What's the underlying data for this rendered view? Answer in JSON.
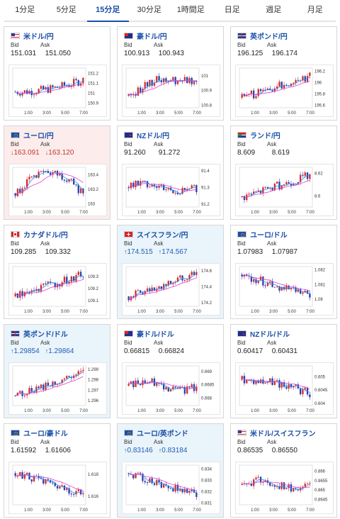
{
  "tabs": [
    "1分足",
    "5分足",
    "15分足",
    "30分足",
    "1時間足",
    "日足",
    "週足",
    "月足"
  ],
  "active_tab": 2,
  "labels": {
    "bid": "Bid",
    "ask": "Ask"
  },
  "colors": {
    "accent": "#1a4fa8",
    "up_bar": "#d62b2b",
    "down_bar": "#2c3fa8",
    "ma_blue": "#1e90ff",
    "ma_pink": "#e040c8",
    "up_bg": "#eaf4fb",
    "down_bg": "#fdecec"
  },
  "x_ticks": [
    "1:00",
    "3:00",
    "5:00",
    "7:00"
  ],
  "cards": [
    {
      "pair": "米ドル/円",
      "bid": "151.031",
      "ask": "151.050",
      "state": "none",
      "flag": "us",
      "chart_data": {
        "type": "candlestick",
        "y_ticks": [
          "151.2",
          "151.1",
          "151",
          "150.9"
        ],
        "ylim": [
          150.85,
          151.25
        ],
        "trend": "flat-up"
      }
    },
    {
      "pair": "豪ドル/円",
      "bid": "100.913",
      "ask": "100.943",
      "state": "none",
      "flag": "au",
      "chart_data": {
        "type": "candlestick",
        "y_ticks": [
          "101",
          "100.9",
          "100.8"
        ],
        "ylim": [
          100.78,
          101.05
        ],
        "trend": "up-flat"
      }
    },
    {
      "pair": "英ポンド/円",
      "bid": "196.125",
      "ask": "196.174",
      "state": "none",
      "flag": "gb",
      "chart_data": {
        "type": "candlestick",
        "y_ticks": [
          "196.2",
          "196",
          "195.8",
          "195.6"
        ],
        "ylim": [
          195.55,
          196.25
        ],
        "trend": "up"
      }
    },
    {
      "pair": "ユーロ/円",
      "bid": "163.091",
      "ask": "163.120",
      "state": "down",
      "flag": "eu",
      "chart_data": {
        "type": "candlestick",
        "y_ticks": [
          "163.4",
          "163.2",
          "163"
        ],
        "ylim": [
          162.95,
          163.5
        ],
        "trend": "up-down"
      }
    },
    {
      "pair": "NZドル/円",
      "bid": "91.260",
      "ask": "91.272",
      "state": "none",
      "flag": "nz",
      "chart_data": {
        "type": "candlestick",
        "y_ticks": [
          "91.4",
          "91.3",
          "91.2"
        ],
        "ylim": [
          91.18,
          91.42
        ],
        "trend": "flat"
      }
    },
    {
      "pair": "ランド/円",
      "bid": "8.609",
      "ask": "8.619",
      "state": "none",
      "flag": "za",
      "chart_data": {
        "type": "candlestick",
        "y_ticks": [
          "8.62",
          "8.6"
        ],
        "ylim": [
          8.59,
          8.625
        ],
        "trend": "up"
      }
    },
    {
      "pair": "カナダドル/円",
      "bid": "109.285",
      "ask": "109.332",
      "state": "none",
      "flag": "ca",
      "chart_data": {
        "type": "candlestick",
        "y_ticks": [
          "109.3",
          "109.2",
          "109.1"
        ],
        "ylim": [
          109.05,
          109.38
        ],
        "trend": "up"
      }
    },
    {
      "pair": "スイスフラン/円",
      "bid": "174.515",
      "ask": "174.567",
      "state": "up",
      "flag": "ch",
      "chart_data": {
        "type": "candlestick",
        "y_ticks": [
          "174.6",
          "174.4",
          "174.2"
        ],
        "ylim": [
          174.15,
          174.65
        ],
        "trend": "up"
      }
    },
    {
      "pair": "ユーロ/ドル",
      "bid": "1.07983",
      "ask": "1.07987",
      "state": "none",
      "flag": "eu",
      "chart_data": {
        "type": "candlestick",
        "y_ticks": [
          "1.082",
          "1.081",
          "1.08"
        ],
        "ylim": [
          1.0795,
          1.0822
        ],
        "trend": "down"
      }
    },
    {
      "pair": "英ポンド/ドル",
      "bid": "1.29854",
      "ask": "1.29864",
      "state": "up",
      "flag": "gb",
      "chart_data": {
        "type": "candlestick",
        "y_ticks": [
          "1.299",
          "1.298",
          "1.297",
          "1.296"
        ],
        "ylim": [
          1.2955,
          1.2993
        ],
        "trend": "up"
      }
    },
    {
      "pair": "豪ドル/ドル",
      "bid": "0.66815",
      "ask": "0.66824",
      "state": "none",
      "flag": "au",
      "chart_data": {
        "type": "candlestick",
        "y_ticks": [
          "0.669",
          "0.6685",
          "0.668"
        ],
        "ylim": [
          0.6677,
          0.6692
        ],
        "trend": "flat"
      }
    },
    {
      "pair": "NZドル/ドル",
      "bid": "0.60417",
      "ask": "0.60431",
      "state": "none",
      "flag": "nz",
      "chart_data": {
        "type": "candlestick",
        "y_ticks": [
          "0.605",
          "0.6045",
          "0.604"
        ],
        "ylim": [
          0.6039,
          0.6054
        ],
        "trend": "flat-down"
      }
    },
    {
      "pair": "ユーロ/豪ドル",
      "bid": "1.61592",
      "ask": "1.61606",
      "state": "none",
      "flag": "eu",
      "chart_data": {
        "type": "candlestick",
        "y_ticks": [
          "1.618",
          "1.616"
        ],
        "ylim": [
          1.6152,
          1.6188
        ],
        "trend": "down"
      }
    },
    {
      "pair": "ユーロ/英ポンド",
      "bid": "0.83146",
      "ask": "0.83184",
      "state": "up",
      "flag": "eu",
      "chart_data": {
        "type": "candlestick",
        "y_ticks": [
          "0.834",
          "0.833",
          "0.832",
          "0.831"
        ],
        "ylim": [
          0.8308,
          0.8343
        ],
        "trend": "down"
      }
    },
    {
      "pair": "米ドル/スイスフラン",
      "bid": "0.86535",
      "ask": "0.86550",
      "state": "none",
      "flag": "us",
      "chart_data": {
        "type": "candlestick",
        "y_ticks": [
          "0.866",
          "0.8655",
          "0.865",
          "0.8645"
        ],
        "ylim": [
          0.8642,
          0.8663
        ],
        "trend": "flat"
      }
    }
  ]
}
